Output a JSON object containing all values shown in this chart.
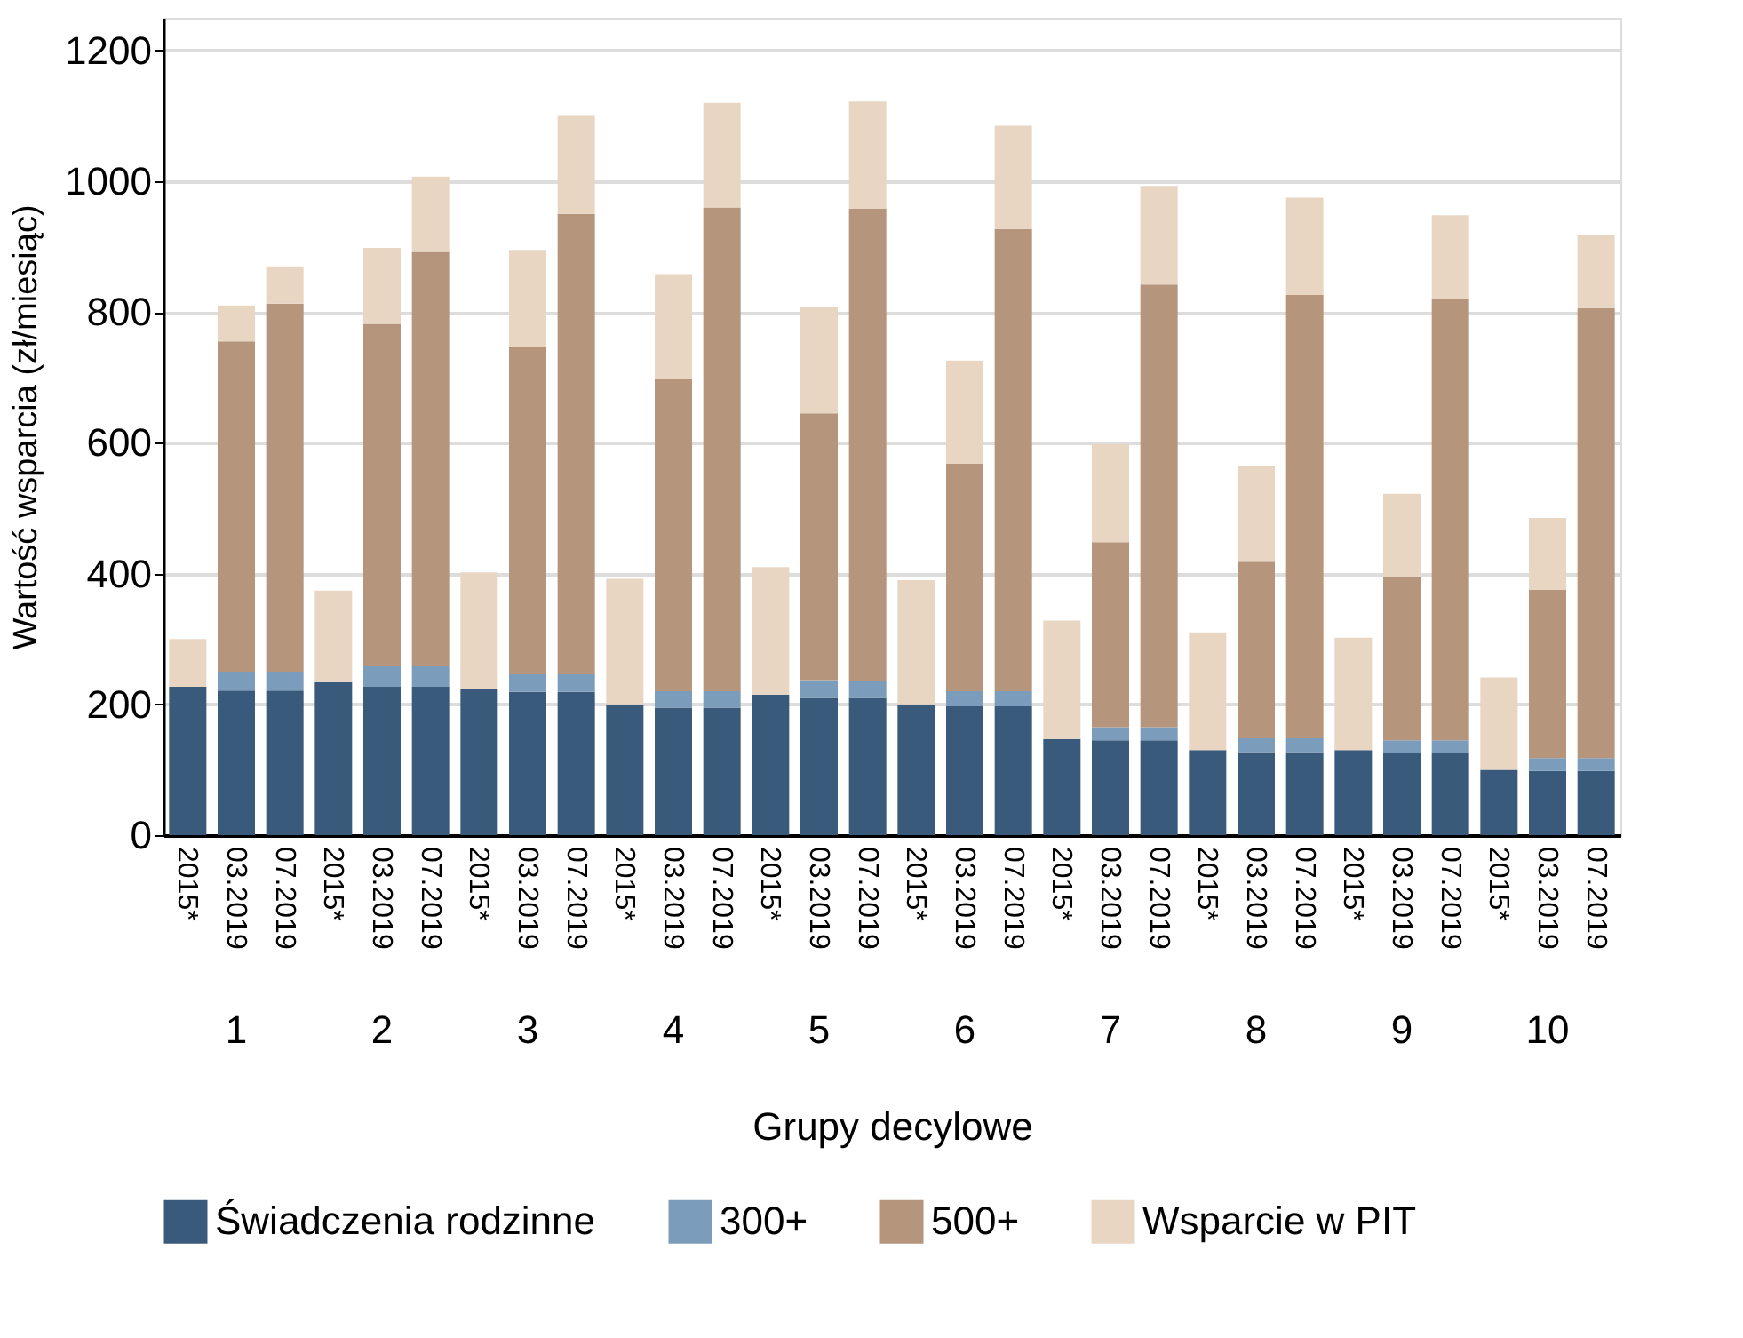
{
  "chart_data": {
    "type": "bar",
    "stacked": true,
    "xlabel": "Grupy decylowe",
    "ylabel": "Wartość wsparcia (zł/miesiąc)",
    "categories": [
      "2015*",
      "03.2019",
      "07.2019",
      "2015*",
      "03.2019",
      "07.2019",
      "2015*",
      "03.2019",
      "07.2019",
      "2015*",
      "03.2019",
      "07.2019",
      "2015*",
      "03.2019",
      "07.2019",
      "2015*",
      "03.2019",
      "07.2019",
      "2015*",
      "03.2019",
      "07.2019",
      "2015*",
      "03.2019",
      "07.2019",
      "2015*",
      "03.2019",
      "07.2019",
      "2015*",
      "03.2019",
      "07.2019"
    ],
    "annotations": [
      "1",
      "2",
      "3",
      "4",
      "5",
      "6",
      "7",
      "8",
      "9",
      "10"
    ],
    "series": [
      {
        "name": "Świadczenia rodzinne",
        "color": "#3a5a7c",
        "values": [
          227,
          221,
          221,
          234,
          227,
          227,
          224,
          219,
          219,
          200,
          195,
          195,
          215,
          210,
          210,
          200,
          197,
          197,
          147,
          145,
          145,
          130,
          127,
          127,
          130,
          125,
          125,
          100,
          98,
          98
        ]
      },
      {
        "name": "300+",
        "color": "#7b9cba",
        "values": [
          0,
          29,
          29,
          0,
          31,
          31,
          0,
          27,
          27,
          0,
          25,
          25,
          0,
          27,
          26,
          0,
          23,
          23,
          0,
          20,
          20,
          0,
          21,
          21,
          0,
          20,
          20,
          0,
          20,
          20
        ]
      },
      {
        "name": "500+",
        "color": "#b5957b",
        "values": [
          0,
          505,
          563,
          0,
          524,
          634,
          0,
          500,
          704,
          0,
          477,
          740,
          0,
          408,
          722,
          0,
          348,
          707,
          0,
          283,
          677,
          0,
          270,
          678,
          0,
          250,
          675,
          0,
          257,
          688
        ]
      },
      {
        "name": "Wsparcie w PIT",
        "color": "#e8d6c3",
        "values": [
          73,
          55,
          57,
          140,
          116,
          115,
          178,
          149,
          150,
          192,
          161,
          160,
          195,
          163,
          164,
          190,
          158,
          158,
          181,
          150,
          151,
          180,
          147,
          149,
          172,
          127,
          128,
          141,
          110,
          112
        ]
      }
    ],
    "ylim": [
      0,
      1250
    ],
    "yticks": [
      0,
      200,
      400,
      600,
      800,
      1000,
      1200
    ],
    "grid": "y",
    "legend": "bottom"
  }
}
